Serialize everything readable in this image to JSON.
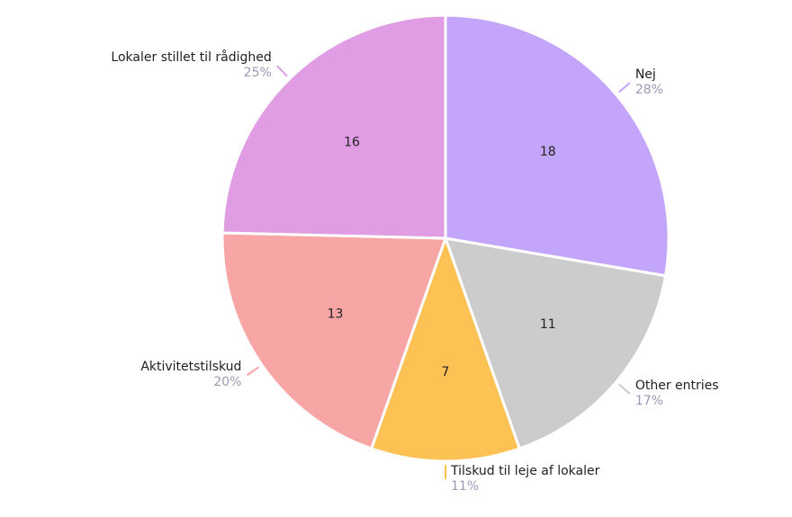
{
  "chart_data": {
    "type": "pie",
    "categories": [
      "Nej",
      "Other entries",
      "Tilskud til leje af lokaler",
      "Aktivitetstilskud",
      "Lokaler stillet til rådighed"
    ],
    "values": [
      18,
      11,
      7,
      13,
      16
    ],
    "percent_labels": [
      "28%",
      "17%",
      "11%",
      "20%",
      "25%"
    ],
    "colors": [
      "#c4a5fc",
      "#cccccc",
      "#fec154",
      "#f8a5a5",
      "#e09de3"
    ]
  }
}
